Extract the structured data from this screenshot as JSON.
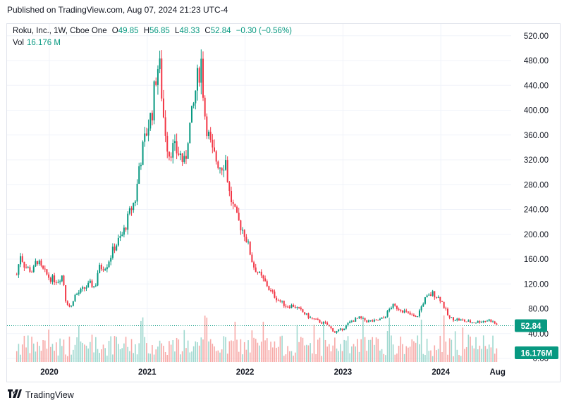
{
  "header": {
    "published": "Published on TradingView.com, Aug 07, 2024 21:23 UTC-4"
  },
  "legend": {
    "symbol": "Roku, Inc., 1W, Cboe One",
    "open_label": "O",
    "open": "49.85",
    "high_label": "H",
    "high": "56.85",
    "low_label": "L",
    "low": "48.33",
    "close_label": "C",
    "close": "52.84",
    "change": "−0.30 (−0.56%)",
    "vol_label": "Vol",
    "vol": "16.176 M"
  },
  "colors": {
    "up": "#089981",
    "down": "#f23645",
    "up_volume": "#9fd8cf",
    "down_volume": "#f7a9a7",
    "grid": "#f0f3fa",
    "axis_text": "#131722",
    "last_price_bg": "#089981"
  },
  "chart_data": {
    "type": "candlestick",
    "title": "Roku, Inc., 1W, Cboe One",
    "interval": "1W",
    "y_scale": "linear",
    "ylim": [
      0,
      535
    ],
    "y_ticks": [
      "520.00",
      "480.00",
      "440.00",
      "400.00",
      "360.00",
      "320.00",
      "280.00",
      "240.00",
      "200.00",
      "160.00",
      "120.00",
      "80.00",
      "40.00",
      "0.00"
    ],
    "x_ticks": [
      "2020",
      "2021",
      "2022",
      "2023",
      "2024",
      "Aug"
    ],
    "last_price_label": "52.84",
    "last_volume_label": "16.176M",
    "price_series": [
      {
        "date": "2019-09",
        "close": 135
      },
      {
        "date": "2019-09-15",
        "close": 168
      },
      {
        "date": "2019-10",
        "close": 148
      },
      {
        "date": "2019-11",
        "close": 140
      },
      {
        "date": "2019-11-15",
        "close": 160
      },
      {
        "date": "2019-12",
        "close": 145
      },
      {
        "date": "2020-01",
        "close": 130
      },
      {
        "date": "2020-02",
        "close": 125
      },
      {
        "date": "2020-02-20",
        "close": 135
      },
      {
        "date": "2020-03",
        "close": 95
      },
      {
        "date": "2020-03-20",
        "close": 80
      },
      {
        "date": "2020-04",
        "close": 100
      },
      {
        "date": "2020-05",
        "close": 110
      },
      {
        "date": "2020-06",
        "close": 120
      },
      {
        "date": "2020-06-20",
        "close": 115
      },
      {
        "date": "2020-07",
        "close": 145
      },
      {
        "date": "2020-08",
        "close": 150
      },
      {
        "date": "2020-09",
        "close": 180
      },
      {
        "date": "2020-10",
        "close": 200
      },
      {
        "date": "2020-11",
        "close": 240
      },
      {
        "date": "2020-11-20",
        "close": 260
      },
      {
        "date": "2020-12",
        "close": 310
      },
      {
        "date": "2021-01",
        "close": 370
      },
      {
        "date": "2021-01-20",
        "close": 400
      },
      {
        "date": "2021-02",
        "close": 450
      },
      {
        "date": "2021-02-15",
        "close": 480
      },
      {
        "date": "2021-03",
        "close": 390
      },
      {
        "date": "2021-03-20",
        "close": 330
      },
      {
        "date": "2021-04",
        "close": 340
      },
      {
        "date": "2021-05",
        "close": 330
      },
      {
        "date": "2021-05-20",
        "close": 310
      },
      {
        "date": "2021-06",
        "close": 360
      },
      {
        "date": "2021-06-20",
        "close": 400
      },
      {
        "date": "2021-07",
        "close": 440
      },
      {
        "date": "2021-07-20",
        "close": 480
      },
      {
        "date": "2021-08",
        "close": 400
      },
      {
        "date": "2021-08-20",
        "close": 350
      },
      {
        "date": "2021-09",
        "close": 330
      },
      {
        "date": "2021-10",
        "close": 310
      },
      {
        "date": "2021-10-20",
        "close": 320
      },
      {
        "date": "2021-11",
        "close": 270
      },
      {
        "date": "2021-11-20",
        "close": 240
      },
      {
        "date": "2021-12",
        "close": 225
      },
      {
        "date": "2022-01",
        "close": 200
      },
      {
        "date": "2022-01-20",
        "close": 170
      },
      {
        "date": "2022-02",
        "close": 150
      },
      {
        "date": "2022-03",
        "close": 130
      },
      {
        "date": "2022-03-20",
        "close": 120
      },
      {
        "date": "2022-04",
        "close": 110
      },
      {
        "date": "2022-05",
        "close": 95
      },
      {
        "date": "2022-06",
        "close": 85
      },
      {
        "date": "2022-07",
        "close": 85
      },
      {
        "date": "2022-08",
        "close": 75
      },
      {
        "date": "2022-09",
        "close": 65
      },
      {
        "date": "2022-10",
        "close": 60
      },
      {
        "date": "2022-11",
        "close": 55
      },
      {
        "date": "2022-12",
        "close": 42
      },
      {
        "date": "2023-01",
        "close": 48
      },
      {
        "date": "2023-02",
        "close": 60
      },
      {
        "date": "2023-03",
        "close": 65
      },
      {
        "date": "2023-04",
        "close": 60
      },
      {
        "date": "2023-05",
        "close": 60
      },
      {
        "date": "2023-06",
        "close": 65
      },
      {
        "date": "2023-07",
        "close": 85
      },
      {
        "date": "2023-08",
        "close": 80
      },
      {
        "date": "2023-09",
        "close": 72
      },
      {
        "date": "2023-10",
        "close": 65
      },
      {
        "date": "2023-11",
        "close": 95
      },
      {
        "date": "2023-12",
        "close": 105
      },
      {
        "date": "2024-01",
        "close": 95
      },
      {
        "date": "2024-02",
        "close": 65
      },
      {
        "date": "2024-03",
        "close": 63
      },
      {
        "date": "2024-04",
        "close": 60
      },
      {
        "date": "2024-05",
        "close": 58
      },
      {
        "date": "2024-06",
        "close": 60
      },
      {
        "date": "2024-07",
        "close": 62
      },
      {
        "date": "2024-08",
        "close": 52.84
      }
    ]
  }
}
